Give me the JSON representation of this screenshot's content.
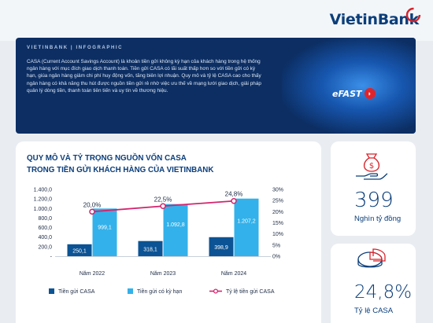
{
  "brand": {
    "name": "VietinBank"
  },
  "banner": {
    "tag": "VIETINBANK  |  INFOGRAPHIC",
    "text": "CASA (Current Account Savings Account) là khoản tiền gửi không kỳ hạn của khách hàng trong hệ thống ngân hàng với mục đích giao dịch thanh toán. Tiền gửi CASA có lãi suất thấp hơn so với tiền gửi có kỳ hạn, giúa ngân hàng giảm chi phí huy động vốn, tăng biên lợi nhuận. Quy mô và tỷ lệ CASA cao cho thấy ngân hàng có khả năng thu hút được nguồn tiền gửi rẻ nhờ việc ưu thế về mạng lưới giao dịch, giải pháp quản lý dòng tiền, thanh toán tiên tiến và uy tín về thương hiệu.",
    "efast_label": "eFAST",
    "efast_mark": "◗"
  },
  "cards": {
    "casa_amount": {
      "value": "399",
      "label": "Nghìn tỷ đồng",
      "icon": "money-bag-hand-icon"
    },
    "casa_ratio": {
      "value": "24,8%",
      "label": "Tỷ lệ CASA",
      "icon": "pie-chart-icon"
    }
  },
  "chart_data": {
    "type": "bar",
    "title": "QUY MÔ VÀ TỶ TRỌNG NGUỒN VỐN CASA",
    "subtitle": "TRONG TIỀN GỬI KHÁCH HÀNG CỦA VIETINBANK",
    "categories": [
      "Năm 2022",
      "Năm 2023",
      "Năm 2024"
    ],
    "series": [
      {
        "name": "Tiền gửi CASA",
        "kind": "bar",
        "axis": "left",
        "color": "#0b5394",
        "values": [
          250.1,
          318.1,
          398.9
        ],
        "labels": [
          "250,1",
          "318,1",
          "398,9"
        ]
      },
      {
        "name": "Tiền gửi có kỳ hạn",
        "kind": "bar",
        "axis": "left",
        "color": "#33b1ea",
        "values": [
          999.1,
          1092.8,
          1207.2
        ],
        "labels": [
          "999,1",
          "1.092,8",
          "1.207,2"
        ]
      },
      {
        "name": "Tỷ lệ tiền gửi CASA",
        "kind": "line",
        "axis": "right",
        "color": "#d3246e",
        "values": [
          20.0,
          22.5,
          24.8
        ],
        "labels": [
          "20,0%",
          "22,5%",
          "24,8%"
        ]
      }
    ],
    "left_axis": {
      "ylim": [
        0,
        1400
      ],
      "ticks": [
        0,
        200,
        400,
        600,
        800,
        1000,
        1200,
        1400
      ],
      "tick_labels": [
        "-",
        "200,0",
        "400,0",
        "600,0",
        "800,0",
        "1.000,0",
        "1.200,0",
        "1.400,0"
      ]
    },
    "right_axis": {
      "ylim": [
        0,
        30
      ],
      "ticks": [
        0,
        5,
        10,
        15,
        20,
        25,
        30
      ],
      "tick_labels": [
        "0%",
        "5%",
        "10%",
        "15%",
        "20%",
        "25%",
        "30%"
      ]
    },
    "legend_position": "bottom",
    "grid": false
  }
}
